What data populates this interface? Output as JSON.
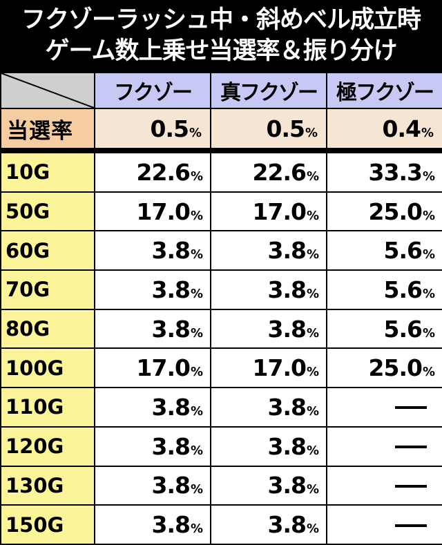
{
  "title": {
    "line1": "フクゾーラッシュ中・斜めベル成立時",
    "line2": "ゲーム数上乗せ当選率＆振り分け"
  },
  "columns": [
    "フクゾー",
    "真フクゾー",
    "極フクゾー"
  ],
  "rate_row": {
    "label": "当選率",
    "values": [
      "0.5",
      "0.5",
      "0.4"
    ]
  },
  "percent_sign": "%",
  "rows": [
    {
      "label": "10G",
      "values": [
        "22.6",
        "22.6",
        "33.3"
      ]
    },
    {
      "label": "50G",
      "values": [
        "17.0",
        "17.0",
        "25.0"
      ]
    },
    {
      "label": "60G",
      "values": [
        "3.8",
        "3.8",
        "5.6"
      ]
    },
    {
      "label": "70G",
      "values": [
        "3.8",
        "3.8",
        "5.6"
      ]
    },
    {
      "label": "80G",
      "values": [
        "3.8",
        "3.8",
        "5.6"
      ]
    },
    {
      "label": "100G",
      "values": [
        "17.0",
        "17.0",
        "25.0"
      ]
    },
    {
      "label": "110G",
      "values": [
        "3.8",
        "3.8",
        null
      ]
    },
    {
      "label": "120G",
      "values": [
        "3.8",
        "3.8",
        null
      ]
    },
    {
      "label": "130G",
      "values": [
        "3.8",
        "3.8",
        null
      ]
    },
    {
      "label": "150G",
      "values": [
        "3.8",
        "3.8",
        null
      ]
    }
  ]
}
